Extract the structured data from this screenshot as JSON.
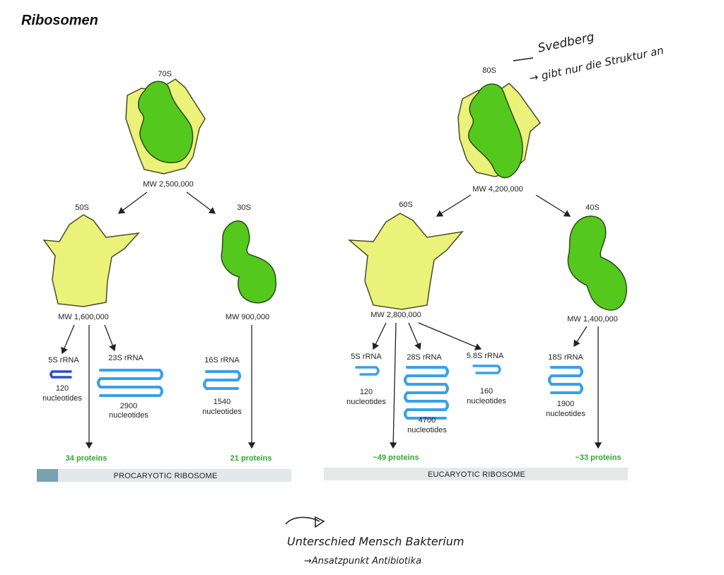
{
  "title": "Ribosomen",
  "prokaryote": {
    "whole": {
      "label": "70S",
      "mw": "MW 2,500,000"
    },
    "large": {
      "label": "50S",
      "mw": "MW 1,600,000"
    },
    "small": {
      "label": "30S",
      "mw": "MW 900,000"
    },
    "rna_5s": {
      "name": "5S rRNA",
      "count": "120",
      "unit": "nucleotides"
    },
    "rna_23s": {
      "name": "23S rRNA",
      "count": "2900",
      "unit": "nucleotides"
    },
    "rna_16s": {
      "name": "16S rRNA",
      "count": "1540",
      "unit": "nucleotides"
    },
    "proteins_large": "34 proteins",
    "proteins_small": "21 proteins",
    "banner": "PROCARYOTIC RIBOSOME"
  },
  "eukaryote": {
    "whole": {
      "label": "80S",
      "mw": "MW 4,200,000"
    },
    "large": {
      "label": "60S",
      "mw": "MW 2,800,000"
    },
    "small": {
      "label": "40S",
      "mw": "MW 1,400,000"
    },
    "rna_5s": {
      "name": "5S rRNA",
      "count": "120",
      "unit": "nucleotides"
    },
    "rna_28s": {
      "name": "28S rRNA",
      "count": "4700",
      "unit": "nucleotides"
    },
    "rna_58s": {
      "name": "5.8S rRNA",
      "count": "160",
      "unit": "nucleotides"
    },
    "rna_18s": {
      "name": "18S rRNA",
      "count": "1900",
      "unit": "nucleotides"
    },
    "proteins_large": "~49 proteins",
    "proteins_small": "~33 proteins",
    "banner": "EUCARYOTIC RIBOSOME"
  },
  "handwriting": {
    "note1": "Svedberg",
    "note2": "→ gibt nur die Struktur an",
    "note3": "Unterschied Mensch Bakterium",
    "note4": "→Ansatzpunkt Antibiotika"
  },
  "colors": {
    "large_subunit": "#eaf27a",
    "small_subunit": "#55c81e",
    "rrna": "#3aa0e8",
    "rrna_5s_pro": "#2a4fd0",
    "proteins_text": "#2fa82f"
  }
}
